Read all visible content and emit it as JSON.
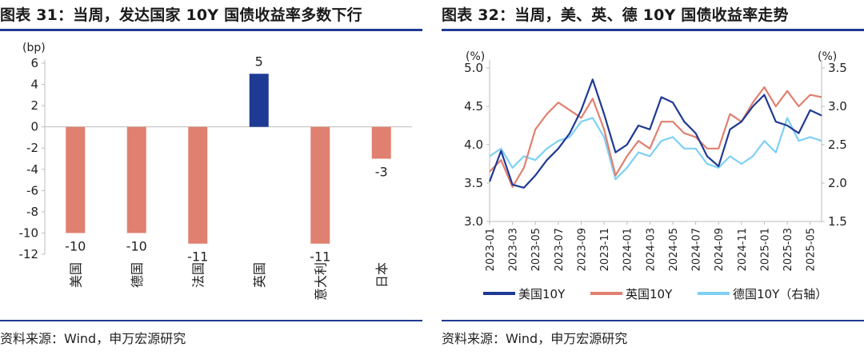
{
  "panels": {
    "left": {
      "title": "图表 31：当周，发达国家 10Y 国债收益率多数下行",
      "source": "资料来源：Wind，申万宏源研究"
    },
    "right": {
      "title": "图表 32：当周，美、英、德 10Y 国债收益率走势",
      "source": "资料来源：Wind，申万宏源研究"
    }
  },
  "colors": {
    "brand_blue": "#1f3a93",
    "bar_negative": "#e08070",
    "bar_positive": "#1f3a93",
    "us": "#1f3a93",
    "uk": "#e08070",
    "de": "#7fd0f5"
  },
  "chart_data": [
    {
      "type": "bar",
      "ylabel": "(bp)",
      "ylim": [
        -12,
        6
      ],
      "yticks": [
        -12,
        -10,
        -8,
        -6,
        -4,
        -2,
        0,
        2,
        4,
        6
      ],
      "categories": [
        "美国",
        "德国",
        "法国",
        "英国",
        "意大利",
        "日本"
      ],
      "values": [
        -10,
        -10,
        -11,
        5,
        -11,
        -3
      ],
      "data_labels": [
        "-10",
        "-10",
        "-11",
        "5",
        "-11",
        "-3"
      ]
    },
    {
      "type": "line",
      "y_left_label": "(%)",
      "y_right_label": "(%)",
      "ylim_left": [
        3.0,
        5.0
      ],
      "ylim_right": [
        1.5,
        3.5
      ],
      "yticks_left": [
        "3.0",
        "3.5",
        "4.0",
        "4.5",
        "5.0"
      ],
      "yticks_right": [
        "1.5",
        "2.0",
        "2.5",
        "3.0",
        "3.5"
      ],
      "x_ticks": [
        "2023-01",
        "2023-03",
        "2023-05",
        "2023-07",
        "2023-09",
        "2023-11",
        "2024-01",
        "2024-03",
        "2024-05",
        "2024-07",
        "2024-09",
        "2024-11",
        "2025-01",
        "2025-03",
        "2025-05"
      ],
      "x_months": [
        "2023-01",
        "2023-02",
        "2023-03",
        "2023-04",
        "2023-05",
        "2023-06",
        "2023-07",
        "2023-08",
        "2023-09",
        "2023-10",
        "2023-11",
        "2023-12",
        "2024-01",
        "2024-02",
        "2024-03",
        "2024-04",
        "2024-05",
        "2024-06",
        "2024-07",
        "2024-08",
        "2024-09",
        "2024-10",
        "2024-11",
        "2024-12",
        "2025-01",
        "2025-02",
        "2025-03",
        "2025-04",
        "2025-05",
        "2025-06"
      ],
      "series": [
        {
          "name": "美国10Y",
          "axis": "left",
          "color": "#1f3a93",
          "values": [
            3.52,
            3.92,
            3.48,
            3.44,
            3.6,
            3.8,
            3.95,
            4.15,
            4.45,
            4.85,
            4.4,
            3.9,
            4.0,
            4.25,
            4.2,
            4.62,
            4.55,
            4.3,
            4.15,
            3.85,
            3.72,
            4.2,
            4.3,
            4.5,
            4.65,
            4.3,
            4.25,
            4.15,
            4.45,
            4.38
          ]
        },
        {
          "name": "英国10Y",
          "axis": "left",
          "color": "#e08070",
          "values": [
            3.65,
            3.8,
            3.45,
            3.7,
            4.2,
            4.4,
            4.55,
            4.45,
            4.35,
            4.6,
            4.2,
            3.6,
            3.85,
            4.05,
            3.95,
            4.3,
            4.3,
            4.15,
            4.1,
            3.95,
            3.95,
            4.4,
            4.3,
            4.55,
            4.75,
            4.5,
            4.7,
            4.5,
            4.65,
            4.62
          ]
        },
        {
          "name": "德国10Y（右轴）",
          "axis": "right",
          "color": "#7fd0f5",
          "values": [
            2.35,
            2.45,
            2.2,
            2.35,
            2.3,
            2.45,
            2.55,
            2.6,
            2.8,
            2.85,
            2.6,
            2.05,
            2.2,
            2.4,
            2.35,
            2.55,
            2.6,
            2.45,
            2.45,
            2.25,
            2.2,
            2.35,
            2.25,
            2.35,
            2.55,
            2.4,
            2.85,
            2.55,
            2.6,
            2.55
          ]
        }
      ]
    }
  ]
}
